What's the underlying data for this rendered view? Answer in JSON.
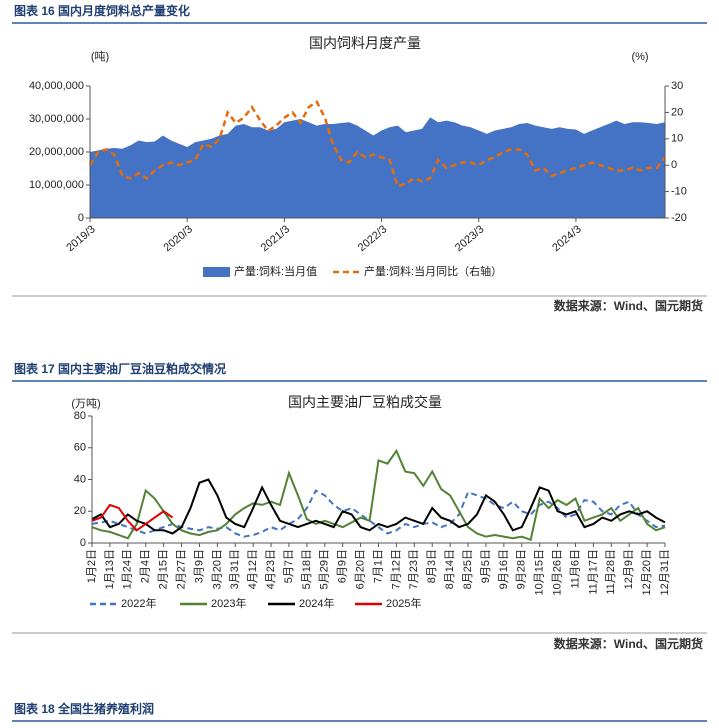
{
  "document": {
    "figure18_caption": "图表 18  全国生猪养殖利润"
  },
  "chart_data": [
    {
      "type": "combo",
      "caption": "图表 16  国内月度饲料总产量变化",
      "title": "国内饲料月度产量",
      "y_label": "(吨)",
      "y2_label": "(%)",
      "source": "数据来源：Wind、国元期货",
      "categories": [
        "2019/3",
        null,
        null,
        null,
        null,
        null,
        null,
        null,
        null,
        null,
        null,
        null,
        "2020/3",
        null,
        null,
        null,
        null,
        null,
        null,
        null,
        null,
        null,
        null,
        null,
        "2021/3",
        null,
        null,
        null,
        null,
        null,
        null,
        null,
        null,
        null,
        null,
        null,
        "2022/3",
        null,
        null,
        null,
        null,
        null,
        null,
        null,
        null,
        null,
        null,
        null,
        "2023/3",
        null,
        null,
        null,
        null,
        null,
        null,
        null,
        null,
        null,
        null,
        null,
        "2024/3",
        null,
        null,
        null,
        null,
        null,
        null,
        null,
        null,
        null,
        null,
        null
      ],
      "ylim": [
        0,
        40000000
      ],
      "yticks": [
        0,
        {
          "value": 10000000,
          "label": "10,000,000"
        },
        {
          "value": 20000000,
          "label": "20,000,000"
        },
        {
          "value": 30000000,
          "label": "30,000,000"
        },
        {
          "value": 40000000,
          "label": "40,000,000"
        }
      ],
      "y2lim": [
        -20,
        30
      ],
      "y2ticks": [
        -20,
        -10,
        0,
        10,
        20,
        30
      ],
      "series": [
        {
          "name": "产量:饲料:当月值",
          "kind": "area",
          "color": "#4472c4",
          "values": [
            20000000,
            20500000,
            21000000,
            21200000,
            21000000,
            22000000,
            23500000,
            23000000,
            23200000,
            25000000,
            23500000,
            22500000,
            21500000,
            23000000,
            23500000,
            24000000,
            25000000,
            25500000,
            28000000,
            28500000,
            27500000,
            27500000,
            26500000,
            27000000,
            29000000,
            29500000,
            30000000,
            29000000,
            28000000,
            28500000,
            28500000,
            28800000,
            29000000,
            28000000,
            26500000,
            25000000,
            26500000,
            27500000,
            28000000,
            26000000,
            26500000,
            27000000,
            30500000,
            29000000,
            29500000,
            29000000,
            28000000,
            27500000,
            26500000,
            25500000,
            26500000,
            27000000,
            27500000,
            28500000,
            28800000,
            28000000,
            27500000,
            27000000,
            27500000,
            27000000,
            26800000,
            25500000,
            26500000,
            27500000,
            28500000,
            29500000,
            28500000,
            29000000,
            29000000,
            28800000,
            28500000,
            29000000
          ]
        },
        {
          "name": "产量:饲料:当月同比（右轴）",
          "kind": "line",
          "dash": true,
          "axis": "y2",
          "color": "#e46c0a",
          "values": [
            0,
            5,
            6,
            4,
            -4,
            -5,
            -3,
            -5,
            -2,
            0,
            1,
            0,
            1,
            2,
            8,
            7,
            10,
            20,
            16,
            18,
            22,
            17,
            13,
            15,
            18,
            20,
            16,
            22,
            24,
            18,
            8,
            2,
            1,
            5,
            3,
            4,
            3,
            2,
            -8,
            -7,
            -5,
            -6,
            -5,
            2,
            -1,
            0,
            1,
            1,
            0,
            2,
            3,
            5,
            6,
            6,
            4,
            -2,
            -1,
            -4,
            -3,
            -2,
            -1,
            0,
            1,
            0,
            -1,
            -2,
            -2,
            -1,
            -2,
            -1,
            -1,
            3
          ]
        }
      ]
    },
    {
      "type": "line",
      "caption": "图表 17  国内主要油厂豆油豆粕成交情况",
      "title": "国内主要油厂豆粕成交量",
      "y_label": "(万吨)",
      "source": "数据来源：Wind、国元期货",
      "categories": [
        "1月2日",
        null,
        "1月13日",
        null,
        "1月24日",
        null,
        "2月4日",
        null,
        "2月15日",
        null,
        "2月27日",
        null,
        "3月9日",
        null,
        "3月20日",
        null,
        "3月31日",
        null,
        "4月12日",
        null,
        "4月23日",
        null,
        "5月7日",
        null,
        "5月18日",
        null,
        "5月29日",
        null,
        "6月9日",
        null,
        "6月20日",
        null,
        "7月1日",
        null,
        "7月12日",
        null,
        "7月23日",
        null,
        "8月3日",
        null,
        "8月14日",
        null,
        "8月25日",
        null,
        "9月5日",
        null,
        "9月16日",
        null,
        "9月28日",
        null,
        "10月15日",
        null,
        "10月26日",
        null,
        "11月6日",
        null,
        "11月17日",
        null,
        "11月28日",
        null,
        "12月9日",
        null,
        "12月20日",
        null,
        "12月31日"
      ],
      "ylim": [
        0,
        80
      ],
      "yticks": [
        0,
        20,
        40,
        60,
        80
      ],
      "series": [
        {
          "name": "2022年",
          "dash": true,
          "color": "#4472c4",
          "values": [
            12,
            13,
            14,
            12,
            10,
            8,
            6,
            8,
            10,
            12,
            10,
            9,
            8,
            10,
            9,
            10,
            6,
            4,
            5,
            7,
            10,
            8,
            12,
            15,
            22,
            33,
            30,
            24,
            20,
            22,
            18,
            14,
            10,
            6,
            8,
            12,
            10,
            12,
            13,
            10,
            12,
            18,
            32,
            30,
            28,
            24,
            22,
            26,
            20,
            18,
            24,
            26,
            22,
            16,
            18,
            27,
            26,
            20,
            18,
            24,
            26,
            18,
            14,
            10,
            11
          ]
        },
        {
          "name": "2023年",
          "color": "#548235",
          "values": [
            10,
            8,
            7,
            5,
            3,
            12,
            33,
            28,
            20,
            12,
            8,
            6,
            5,
            7,
            8,
            12,
            18,
            22,
            25,
            24,
            26,
            24,
            44,
            30,
            15,
            12,
            14,
            12,
            10,
            13,
            16,
            14,
            52,
            50,
            58,
            45,
            44,
            36,
            45,
            34,
            30,
            20,
            10,
            6,
            4,
            5,
            4,
            3,
            4,
            2,
            28,
            22,
            27,
            24,
            28,
            14,
            16,
            18,
            22,
            14,
            18,
            22,
            12,
            8,
            10
          ]
        },
        {
          "name": "2024年",
          "color": "#000000",
          "values": [
            15,
            18,
            10,
            12,
            18,
            14,
            12,
            8,
            8,
            6,
            10,
            22,
            38,
            40,
            30,
            16,
            12,
            10,
            22,
            35,
            24,
            14,
            12,
            10,
            12,
            14,
            12,
            10,
            20,
            18,
            10,
            8,
            12,
            10,
            12,
            16,
            14,
            12,
            22,
            16,
            14,
            10,
            12,
            18,
            30,
            26,
            18,
            8,
            10,
            22,
            35,
            33,
            20,
            18,
            20,
            10,
            12,
            16,
            14,
            18,
            20,
            18,
            20,
            16,
            13
          ]
        },
        {
          "name": "2025年",
          "color": "#e00000",
          "values": [
            14,
            16,
            24,
            22,
            14,
            8,
            12,
            16,
            20,
            16,
            null,
            null,
            null,
            null,
            null,
            null,
            null,
            null,
            null,
            null,
            null,
            null,
            null,
            null,
            null,
            null,
            null,
            null,
            null,
            null,
            null,
            null,
            null,
            null,
            null,
            null,
            null,
            null,
            null,
            null,
            null,
            null,
            null,
            null,
            null,
            null,
            null,
            null,
            null,
            null,
            null,
            null,
            null,
            null,
            null,
            null,
            null,
            null,
            null,
            null,
            null,
            null,
            null,
            null,
            null
          ]
        }
      ]
    }
  ]
}
